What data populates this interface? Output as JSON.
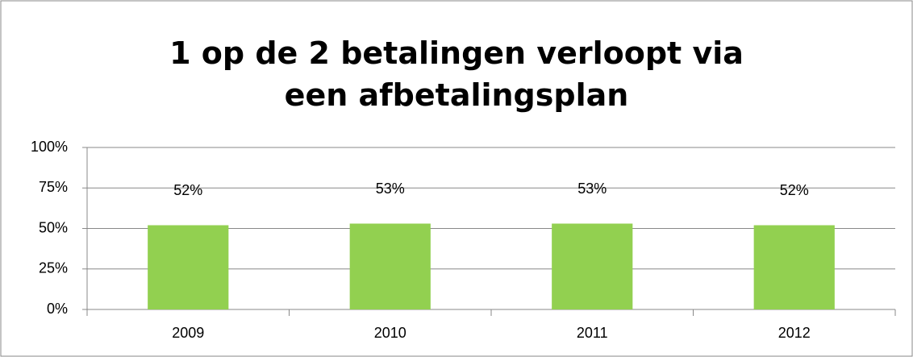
{
  "chart_data": {
    "type": "bar",
    "title": "1 op de 2 betalingen verloopt via een afbetalingsplan",
    "categories": [
      "2009",
      "2010",
      "2011",
      "2012"
    ],
    "values": [
      52,
      53,
      53,
      52
    ],
    "value_labels": [
      "52%",
      "53%",
      "53%",
      "52%"
    ],
    "color": "#92d050",
    "ylim": [
      0,
      100
    ],
    "yticks": [
      {
        "value": 0,
        "label": "0%"
      },
      {
        "value": 25,
        "label": "25%"
      },
      {
        "value": 50,
        "label": "50%"
      },
      {
        "value": 75,
        "label": "75%"
      },
      {
        "value": 100,
        "label": "100%"
      }
    ],
    "grid": true
  }
}
